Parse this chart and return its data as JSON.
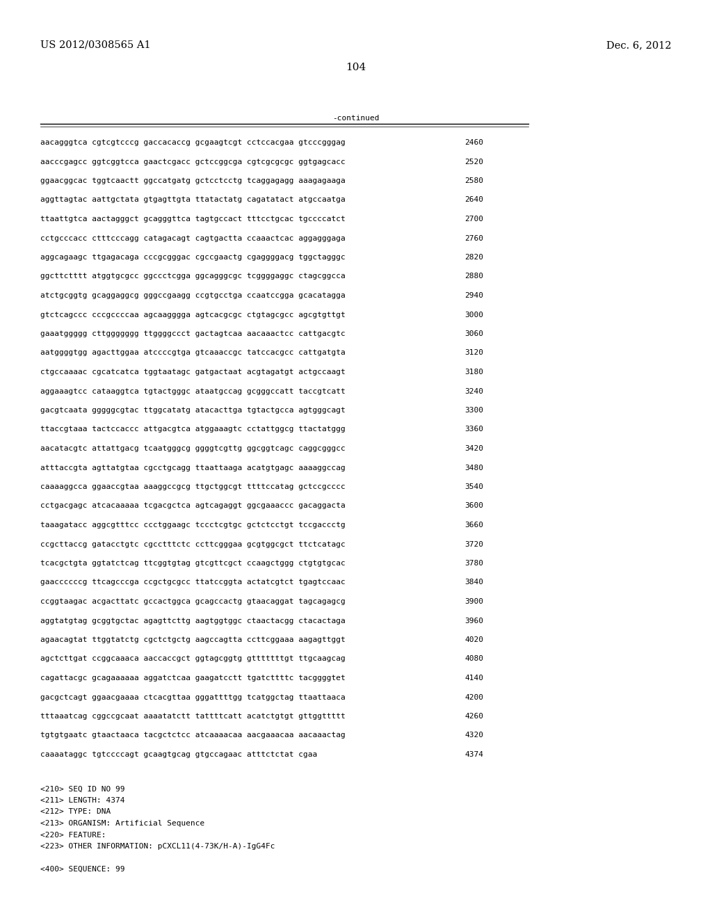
{
  "patent_number": "US 2012/0308565 A1",
  "date": "Dec. 6, 2012",
  "page_number": "104",
  "continued_label": "-continued",
  "background_color": "#ffffff",
  "text_color": "#000000",
  "sequence_lines": [
    [
      "aacagggtca cgtcgtcccg gaccacaccg gcgaagtcgt cctccacgaa gtcccgggag",
      "2460"
    ],
    [
      "aacccgagcc ggtcggtcca gaactcgacc gctccggcga cgtcgcgcgc ggtgagcacc",
      "2520"
    ],
    [
      "ggaacggcac tggtcaactt ggccatgatg gctcctcctg tcaggagagg aaagagaaga",
      "2580"
    ],
    [
      "aggttagtac aattgctata gtgagttgta ttatactatg cagatatact atgccaatga",
      "2640"
    ],
    [
      "ttaattgtca aactagggct gcagggttca tagtgccact tttcctgcac tgccccatct",
      "2700"
    ],
    [
      "cctgcccacc ctttcccagg catagacagt cagtgactta ccaaactcac aggagggaga",
      "2760"
    ],
    [
      "aggcagaagc ttgagacaga cccgcgggac cgccgaactg cgaggggacg tggctagggc",
      "2820"
    ],
    [
      "ggcttctttt atggtgcgcc ggccctcgga ggcagggcgc tcggggaggc ctagcggcca",
      "2880"
    ],
    [
      "atctgcggtg gcaggaggcg gggccgaagg ccgtgcctga ccaatccgga gcacatagga",
      "2940"
    ],
    [
      "gtctcagccc cccgccccaa agcaagggga agtcacgcgc ctgtagcgcc agcgtgttgt",
      "3000"
    ],
    [
      "gaaatggggg cttggggggg ttggggccct gactagtcaa aacaaactcc cattgacgtc",
      "3060"
    ],
    [
      "aatggggtgg agacttggaa atccccgtga gtcaaaccgc tatccacgcc cattgatgta",
      "3120"
    ],
    [
      "ctgccaaaac cgcatcatca tggtaatagc gatgactaat acgtagatgt actgccaagt",
      "3180"
    ],
    [
      "aggaaagtcc cataaggtca tgtactgggc ataatgccag gcgggccatt taccgtcatt",
      "3240"
    ],
    [
      "gacgtcaata gggggcgtac ttggcatatg atacacttga tgtactgcca agtgggcagt",
      "3300"
    ],
    [
      "ttaccgtaaa tactccaccc attgacgtca atggaaagtc cctattggcg ttactatggg",
      "3360"
    ],
    [
      "aacatacgtc attattgacg tcaatgggcg ggggtcgttg ggcggtcagc caggcgggcc",
      "3420"
    ],
    [
      "atttaccgta agttatgtaa cgcctgcagg ttaattaaga acatgtgagc aaaaggccag",
      "3480"
    ],
    [
      "caaaaggcca ggaaccgtaa aaaggccgcg ttgctggcgt ttttccatag gctccgcccc",
      "3540"
    ],
    [
      "cctgacgagc atcacaaaaa tcgacgctca agtcagaggt ggcgaaaccc gacaggacta",
      "3600"
    ],
    [
      "taaagatacc aggcgtttcc ccctggaagc tccctcgtgc gctctcctgt tccgaccctg",
      "3660"
    ],
    [
      "ccgcttaccg gatacctgtc cgcctttctc ccttcgggaa gcgtggcgct ttctcatagc",
      "3720"
    ],
    [
      "tcacgctgta ggtatctcag ttcggtgtag gtcgttcgct ccaagctggg ctgtgtgcac",
      "3780"
    ],
    [
      "gaaccccccg ttcagcccga ccgctgcgcc ttatccggta actatcgtct tgagtccaac",
      "3840"
    ],
    [
      "ccggtaagac acgacttatc gccactggca gcagccactg gtaacaggat tagcagagcg",
      "3900"
    ],
    [
      "aggtatgtag gcggtgctac agagttcttg aagtggtggc ctaactacgg ctacactaga",
      "3960"
    ],
    [
      "agaacagtat ttggtatctg cgctctgctg aagccagtta ccttcggaaa aagagttggt",
      "4020"
    ],
    [
      "agctcttgat ccggcaaaca aaccaccgct ggtagcggtg gtttttttgt ttgcaagcag",
      "4080"
    ],
    [
      "cagattacgc gcagaaaaaa aggatctcaa gaagatcctt tgatcttttc tacggggtet",
      "4140"
    ],
    [
      "gacgctcagt ggaacgaaaa ctcacgttaa gggattttgg tcatggctag ttaattaaca",
      "4200"
    ],
    [
      "tttaaatcag cggccgcaat aaaatatctt tattttcatt acatctgtgt gttggttttt",
      "4260"
    ],
    [
      "tgtgtgaatc gtaactaaca tacgctctcc atcaaaacaa aacgaaacaa aacaaactag",
      "4320"
    ],
    [
      "caaaataggc tgtccccagt gcaagtgcag gtgccagaac atttctctat cgaa",
      "4374"
    ]
  ],
  "footer_lines": [
    "<210> SEQ ID NO 99",
    "<211> LENGTH: 4374",
    "<212> TYPE: DNA",
    "<213> ORGANISM: Artificial Sequence",
    "<220> FEATURE:",
    "<223> OTHER INFORMATION: pCXCL11(4-73K/H-A)-IgG4Fc",
    "",
    "<400> SEQUENCE: 99"
  ],
  "font_size_header": 10.5,
  "font_size_body": 8.0,
  "font_size_page": 11
}
